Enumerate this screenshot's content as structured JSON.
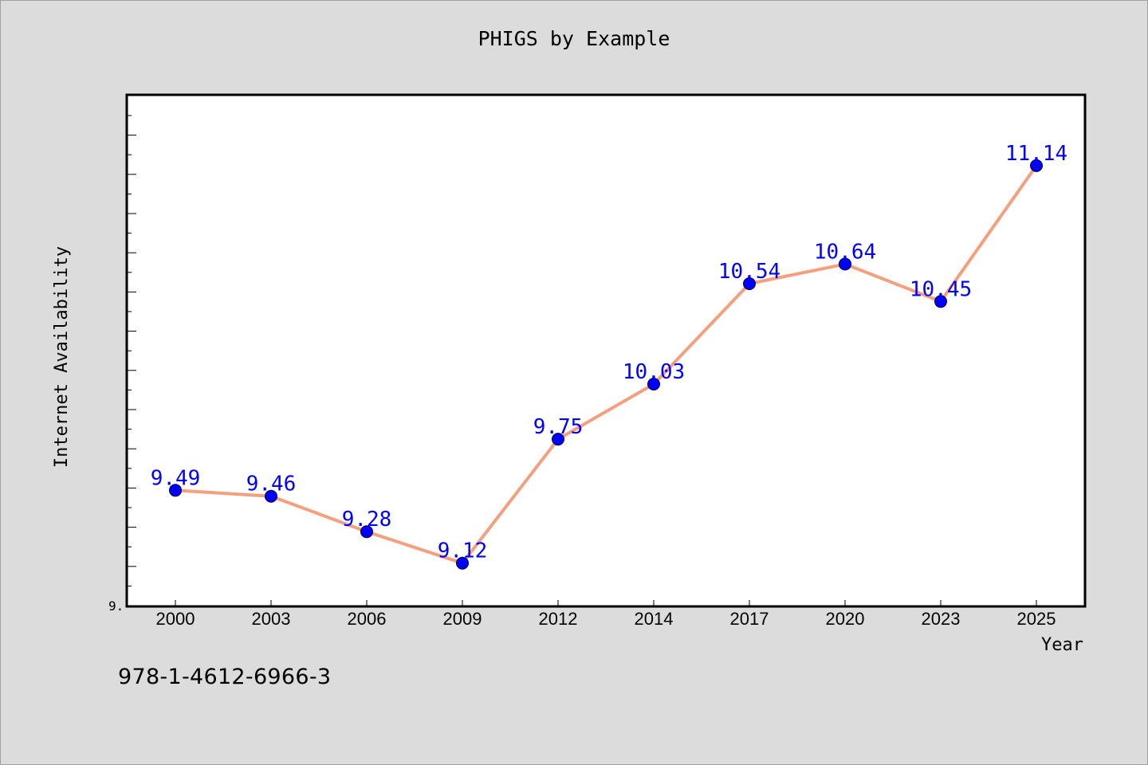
{
  "title": "PHIGS by Example",
  "isbn_note": "978-1-4612-6966-3",
  "colors": {
    "background": "#dcdcdc",
    "plot_background": "#ffffff",
    "line": "#f4a07e",
    "marker": "#0000ff",
    "data_label": "#0000ff",
    "axis": "#000000"
  },
  "chart_data": {
    "type": "line",
    "title": "PHIGS by Example",
    "xlabel": "Year",
    "ylabel": "Internet Availability",
    "categories": [
      "2000",
      "2003",
      "2006",
      "2009",
      "2012",
      "2014",
      "2017",
      "2020",
      "2023",
      "2025"
    ],
    "series": [
      {
        "values": [
          9.49,
          9.46,
          9.28,
          9.12,
          9.75,
          10.03,
          10.54,
          10.64,
          10.45,
          11.14
        ]
      }
    ],
    "data_labels": [
      "9.49",
      "9.46",
      "9.28",
      "9.12",
      "9.75",
      "10.03",
      "10.54",
      "10.64",
      "10.45",
      "11.14"
    ],
    "y_tick_labels": [
      "9."
    ],
    "ylim": [
      8.9,
      11.5
    ],
    "grid": false,
    "legend": "none",
    "marker": "circle"
  }
}
